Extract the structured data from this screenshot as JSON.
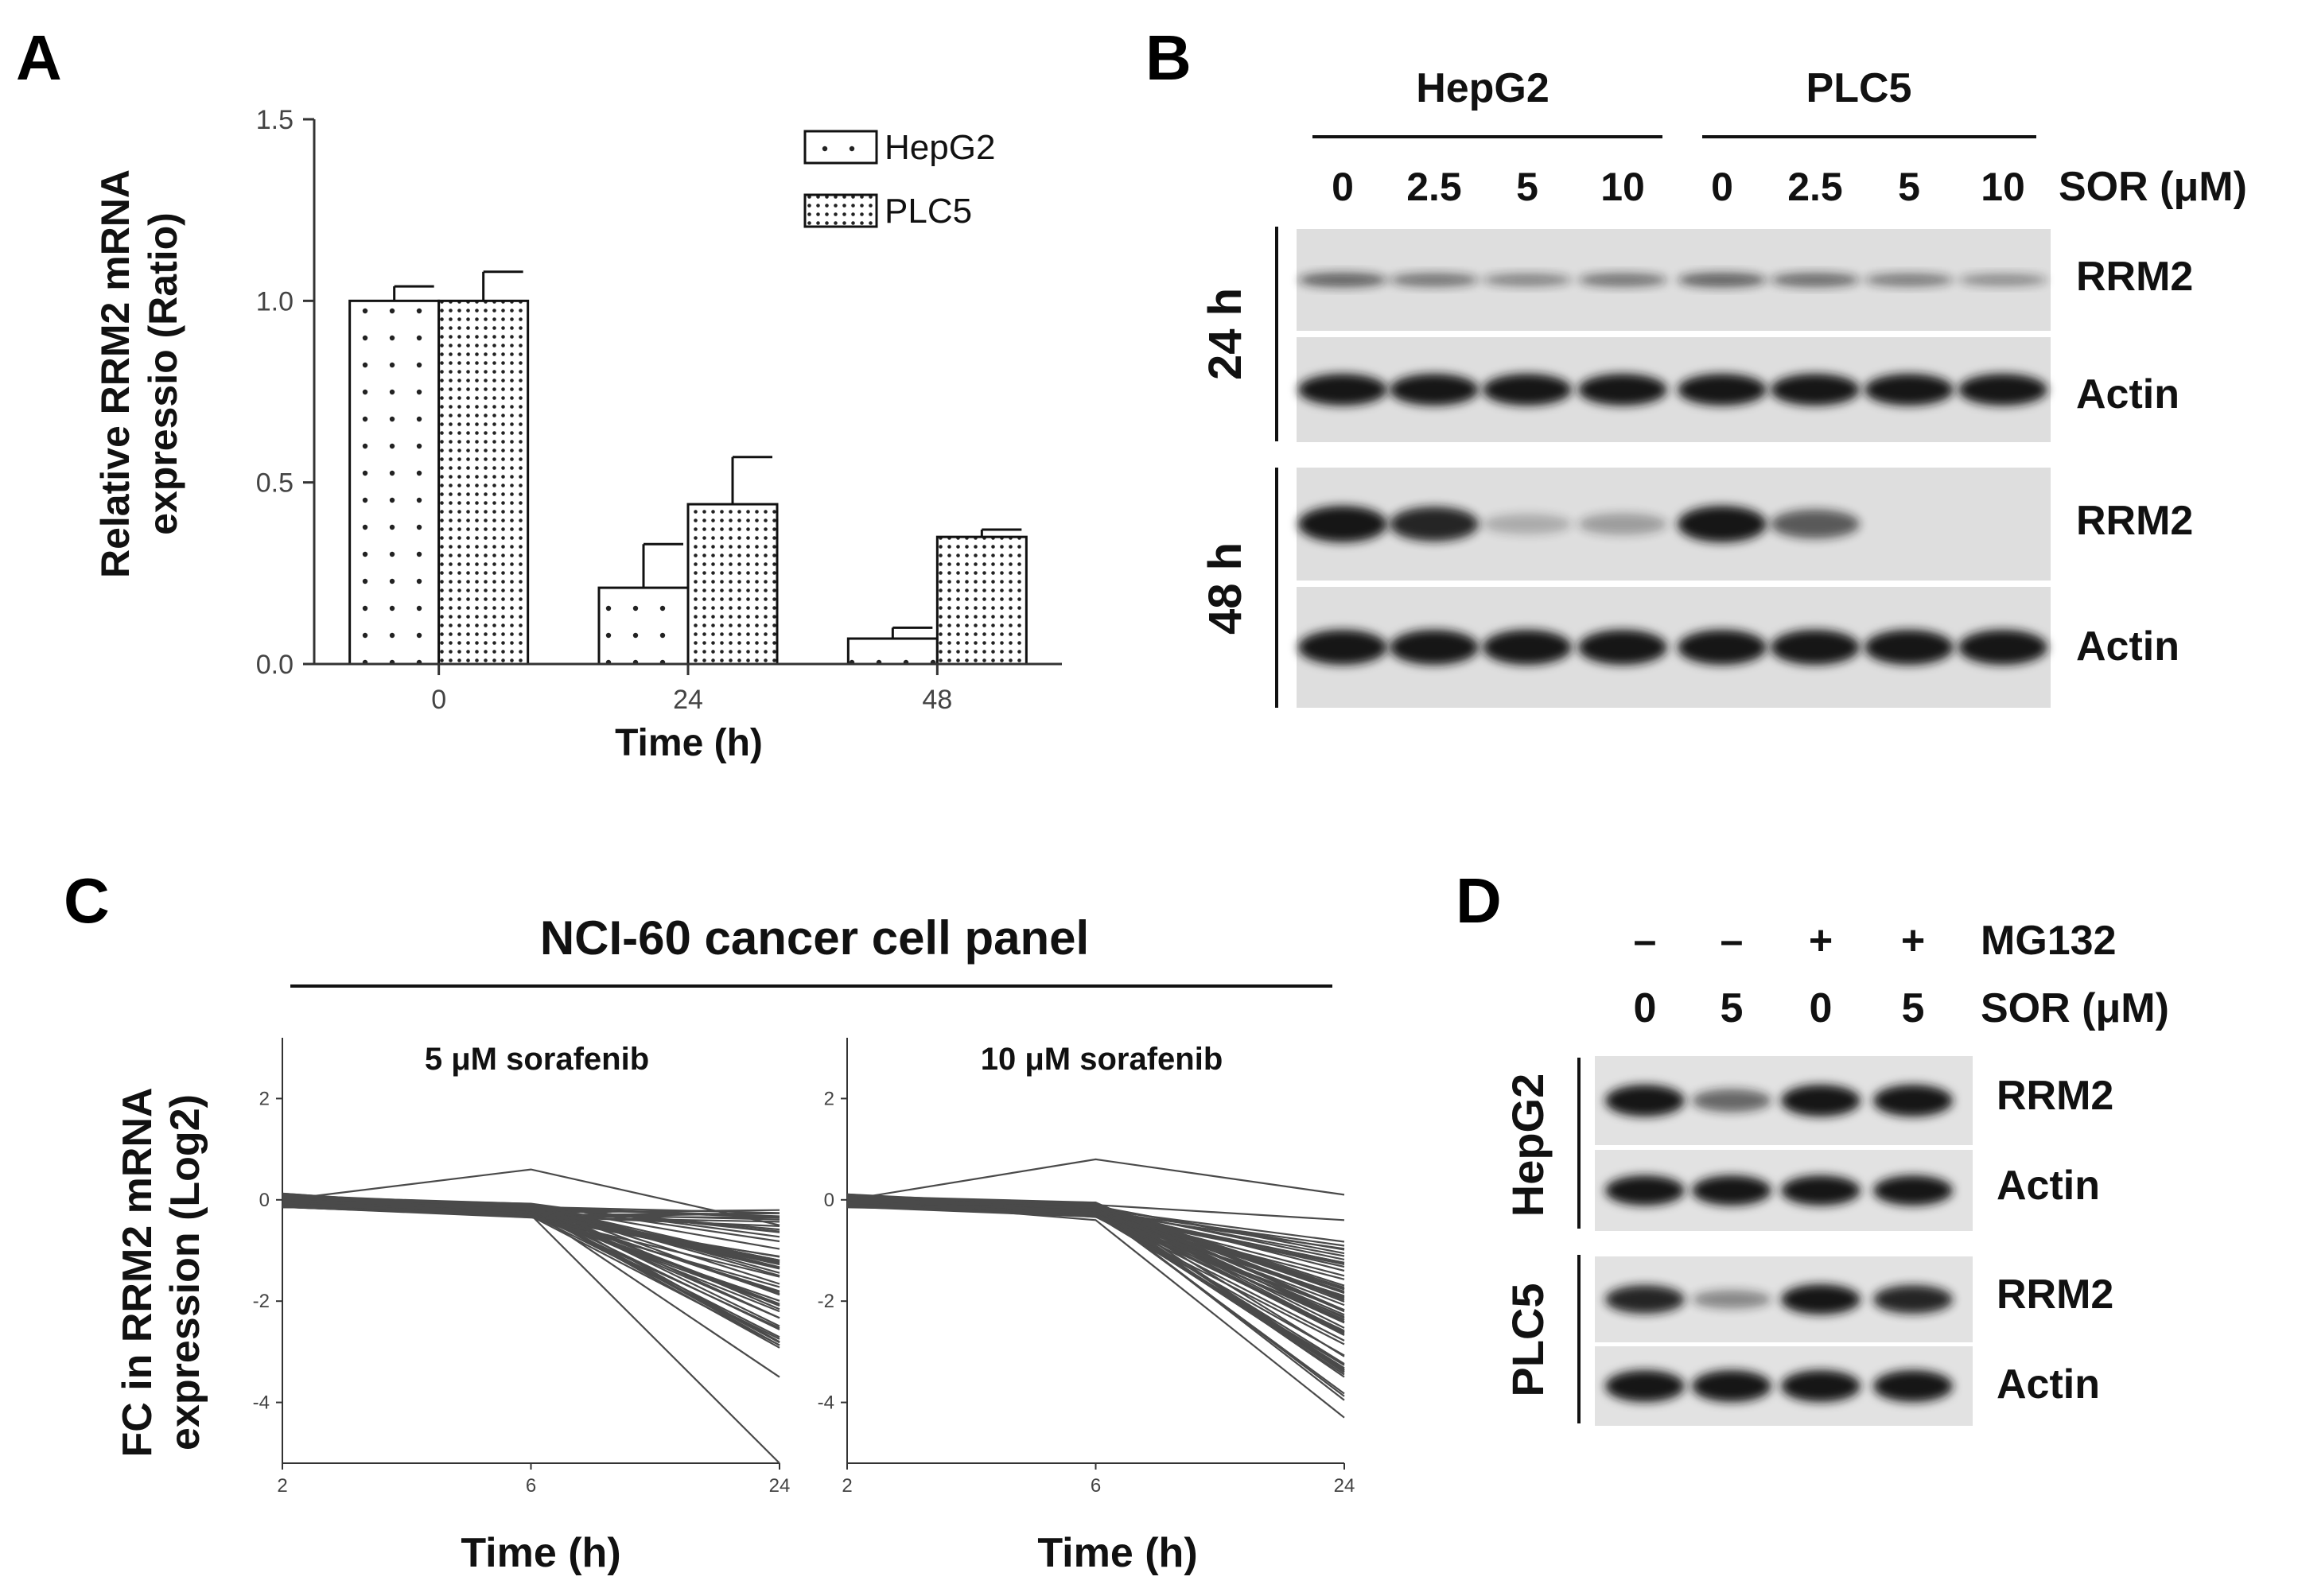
{
  "panels": {
    "a": "A",
    "b": "B",
    "c": "C",
    "d": "D"
  },
  "chart_data": [
    {
      "type": "bar",
      "categories": [
        "0",
        "24",
        "48"
      ],
      "series": [
        {
          "name": "HepG2",
          "values": [
            1.0,
            0.21,
            0.07
          ],
          "errors": [
            0.04,
            0.12,
            0.03
          ]
        },
        {
          "name": "PLC5",
          "values": [
            1.0,
            0.44,
            0.35
          ],
          "errors": [
            0.08,
            0.13,
            0.02
          ]
        }
      ],
      "xlabel": "Time (h)",
      "ylabel": [
        "Relative RRM2 mRNA",
        "expressio (Ratio)"
      ],
      "ylim": [
        0,
        1.5
      ],
      "yticks": [
        "0.0",
        "0.5",
        "1.0",
        "1.5"
      ],
      "legend_position": "top-right"
    },
    {
      "type": "line",
      "header": "NCI-60 cancer cell panel",
      "ylabel": [
        "FC in RRM2 mRNA",
        "expression (Log2)"
      ],
      "xlabel": "Time (h)",
      "x": [
        "2",
        "6",
        "24"
      ],
      "yticks": [
        "2",
        "0",
        "-2",
        "-4"
      ],
      "ylim": [
        -5.2,
        3.2
      ],
      "subplots": [
        {
          "title": "5 μM sorafenib",
          "series_count": 60,
          "outliers": [
            [
              0.0,
              0.6,
              -0.5
            ],
            [
              0.0,
              -0.3,
              -5.2
            ],
            [
              0.0,
              -0.2,
              -3.5
            ]
          ],
          "endpoint_range": [
            -3.0,
            -0.2
          ]
        },
        {
          "title": "10 μM sorafenib",
          "series_count": 60,
          "outliers": [
            [
              0.0,
              0.8,
              0.1
            ],
            [
              0.0,
              -0.1,
              -0.4
            ],
            [
              0.0,
              -0.4,
              -4.3
            ]
          ],
          "endpoint_range": [
            -4.0,
            -0.8
          ]
        }
      ]
    }
  ],
  "blot_b": {
    "groups": [
      "HepG2",
      "PLC5"
    ],
    "concentrations": [
      "0",
      "2.5",
      "5",
      "10",
      "0",
      "2.5",
      "5",
      "10"
    ],
    "treatment_label": "SOR (μM)",
    "timepoints": [
      "24 h",
      "48 h"
    ],
    "bands": [
      "RRM2",
      "Actin",
      "RRM2",
      "Actin"
    ],
    "intensity": {
      "rrm2_24h": [
        0.55,
        0.45,
        0.35,
        0.45,
        0.55,
        0.5,
        0.4,
        0.3
      ],
      "actin_24h": [
        1,
        1,
        1,
        1,
        1,
        1,
        1,
        1
      ],
      "rrm2_48h": [
        1,
        0.9,
        0.12,
        0.2,
        1,
        0.6,
        0,
        0
      ],
      "actin_48h": [
        1,
        1,
        1,
        1,
        1,
        1,
        1,
        1
      ]
    }
  },
  "blot_d": {
    "mg132_signs": [
      "–",
      "–",
      "+",
      "+"
    ],
    "mg132_label": "MG132",
    "sor_values": [
      "0",
      "5",
      "0",
      "5"
    ],
    "sor_label": "SOR (μM)",
    "cell_lines": [
      "HepG2",
      "PLC5"
    ],
    "bands": [
      "RRM2",
      "Actin",
      "RRM2",
      "Actin"
    ],
    "intensity": {
      "hepg2_rrm2": [
        1,
        0.5,
        1,
        1
      ],
      "hepg2_actin": [
        1,
        1,
        1,
        1
      ],
      "plc5_rrm2": [
        0.9,
        0.3,
        1,
        0.9
      ],
      "plc5_actin": [
        1,
        1,
        1,
        1
      ]
    }
  }
}
